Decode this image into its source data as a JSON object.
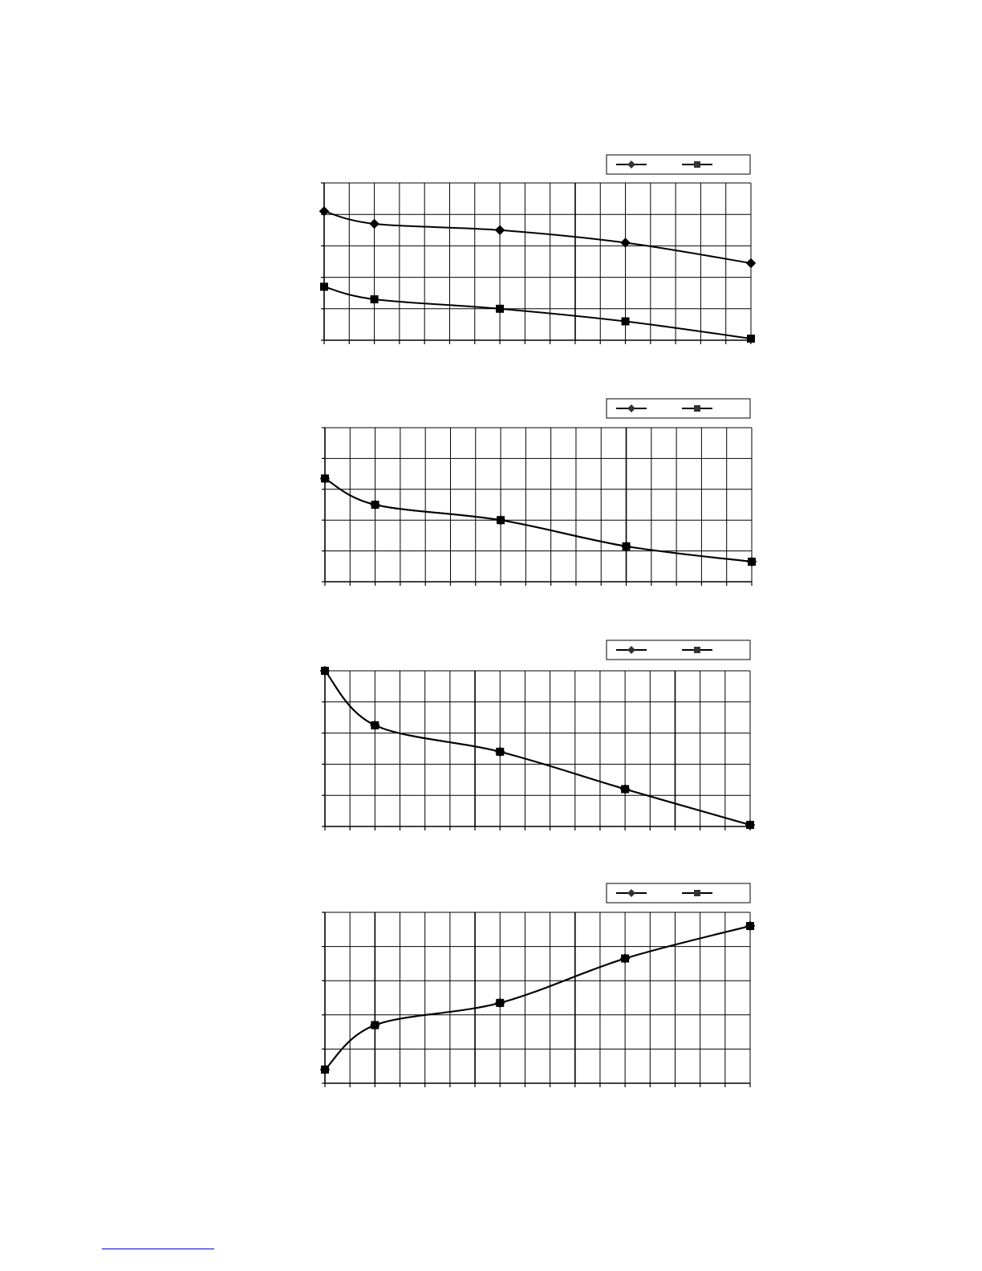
{
  "chart_data": [
    {
      "type": "line",
      "title": "",
      "xlabel": "",
      "ylabel": "",
      "xlim": [
        0,
        17
      ],
      "ylim": [
        0,
        5
      ],
      "x_gridlines": 17,
      "y_gridlines": 5,
      "grid": true,
      "legend": "top-right",
      "series": [
        {
          "marker": "diamond",
          "x": [
            0,
            2,
            7,
            12,
            17
          ],
          "values": [
            4.1,
            3.7,
            3.5,
            3.1,
            2.45
          ]
        },
        {
          "marker": "square",
          "x": [
            0,
            2,
            7,
            12,
            17
          ],
          "values": [
            1.7,
            1.3,
            1.0,
            0.6,
            0.05
          ]
        }
      ]
    },
    {
      "type": "line",
      "title": "",
      "xlabel": "",
      "ylabel": "",
      "xlim": [
        0,
        17
      ],
      "ylim": [
        0,
        5
      ],
      "x_gridlines": 17,
      "y_gridlines": 5,
      "grid": true,
      "legend": "top-right",
      "series": [
        {
          "marker": "diamond",
          "x": [
            0,
            2,
            7,
            12,
            17
          ],
          "values": [
            3.35,
            2.5,
            2.0,
            1.15,
            0.65
          ]
        },
        {
          "marker": "square",
          "x": [
            0,
            2,
            7,
            12,
            17
          ],
          "values": [
            3.35,
            2.5,
            2.0,
            1.15,
            0.65
          ]
        }
      ]
    },
    {
      "type": "line",
      "title": "",
      "xlabel": "",
      "ylabel": "",
      "xlim": [
        0,
        17
      ],
      "ylim": [
        0,
        5
      ],
      "x_gridlines": 17,
      "y_gridlines": 5,
      "grid": true,
      "legend": "top-right",
      "series": [
        {
          "marker": "diamond",
          "x": [
            0,
            2,
            7,
            12,
            17
          ],
          "values": [
            5.0,
            3.25,
            2.4,
            1.2,
            0.05
          ]
        },
        {
          "marker": "square",
          "x": [
            0,
            2,
            7,
            12,
            17
          ],
          "values": [
            5.0,
            3.25,
            2.4,
            1.2,
            0.05
          ]
        }
      ]
    },
    {
      "type": "line",
      "title": "",
      "xlabel": "",
      "ylabel": "",
      "xlim": [
        0,
        17
      ],
      "ylim": [
        0,
        5
      ],
      "x_gridlines": 17,
      "y_gridlines": 5,
      "grid": true,
      "legend": "top-right",
      "series": [
        {
          "marker": "diamond",
          "x": [
            0,
            2,
            7,
            12,
            17
          ],
          "values": [
            0.4,
            1.7,
            2.35,
            3.65,
            4.6
          ]
        },
        {
          "marker": "square",
          "x": [
            0,
            2,
            7,
            12,
            17
          ],
          "values": [
            0.4,
            1.7,
            2.35,
            3.65,
            4.6
          ]
        }
      ]
    }
  ]
}
